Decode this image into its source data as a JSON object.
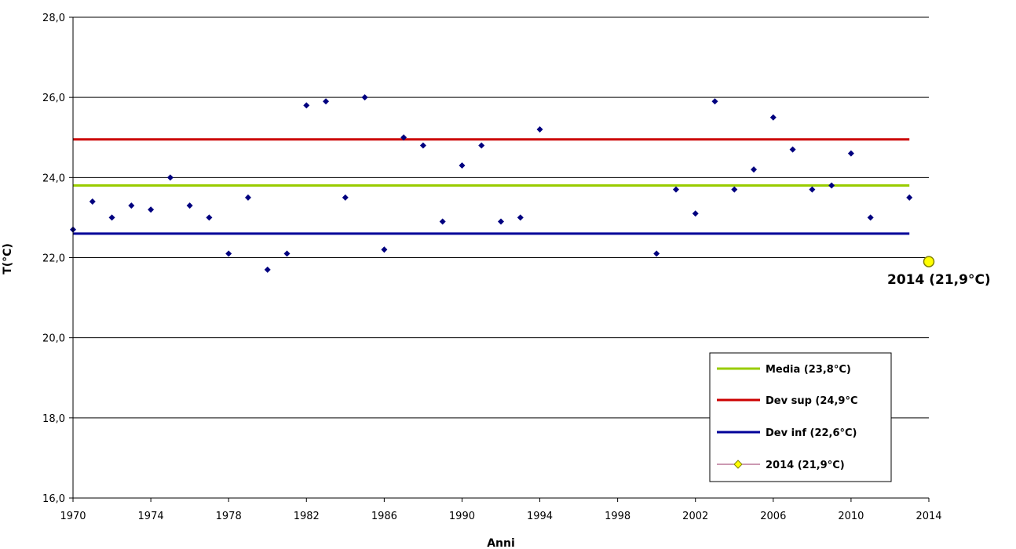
{
  "chart_data": {
    "type": "scatter",
    "xlabel": "Anni",
    "ylabel": "T(°C)",
    "xlim": [
      1970,
      2014
    ],
    "ylim": [
      16.0,
      28.0
    ],
    "xticks": [
      "1970",
      "1974",
      "1978",
      "1982",
      "1986",
      "1990",
      "1994",
      "1998",
      "2002",
      "2006",
      "2010",
      "2014"
    ],
    "yticks": [
      "16,0",
      "18,0",
      "20,0",
      "22,0",
      "24,0",
      "26,0",
      "28,0"
    ],
    "grid": "horizontal",
    "series": [
      {
        "type": "scatter",
        "color": "#00007f",
        "marker": "diamond",
        "x": [
          1970,
          1971,
          1972,
          1973,
          1974,
          1975,
          1976,
          1977,
          1978,
          1979,
          1980,
          1981,
          1982,
          1983,
          1984,
          1985,
          1986,
          1987,
          1988,
          1989,
          1990,
          1991,
          1992,
          1993,
          1994,
          2000,
          2001,
          2002,
          2003,
          2004,
          2005,
          2006,
          2007,
          2008,
          2009,
          2010,
          2011,
          2013
        ],
        "y": [
          22.7,
          23.4,
          23.0,
          23.3,
          23.2,
          24.0,
          23.3,
          23.0,
          22.1,
          23.5,
          21.7,
          22.1,
          25.8,
          25.9,
          23.5,
          26.0,
          22.2,
          25.0,
          24.8,
          22.9,
          24.3,
          24.8,
          22.9,
          23.0,
          25.2,
          22.1,
          23.7,
          23.1,
          25.9,
          23.7,
          24.2,
          25.5,
          24.7,
          23.7,
          23.8,
          24.6,
          23.0,
          23.5
        ]
      },
      {
        "name": "Media (23,8°C)",
        "type": "hline",
        "y": 23.8,
        "x_range": [
          1970,
          2013
        ],
        "color": "#99cc00"
      },
      {
        "name": "Dev sup (24,9°C",
        "type": "hline",
        "y": 24.95,
        "x_range": [
          1970,
          2013
        ],
        "color": "#cc0000"
      },
      {
        "name": "Dev inf (22,6°C)",
        "type": "hline",
        "y": 22.6,
        "x_range": [
          1970,
          2013
        ],
        "color": "#000099"
      },
      {
        "name": "2014 (21,9°C)",
        "type": "point",
        "x": 2014,
        "y": 21.9,
        "color": "#ffff00",
        "edge_color": "#808000"
      }
    ],
    "annotations": [
      {
        "text": "2014 (21,9°C)",
        "x": 2014,
        "y": 21.9
      }
    ],
    "legend_position": "bottom-right"
  }
}
